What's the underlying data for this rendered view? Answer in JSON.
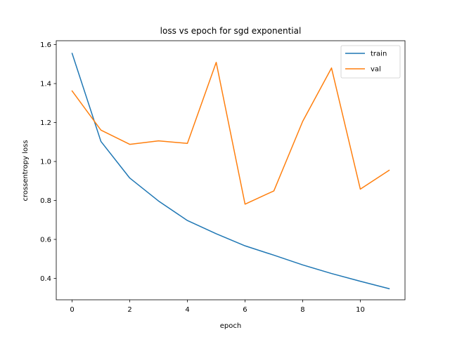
{
  "chart_data": {
    "type": "line",
    "title": "loss vs epoch for sgd exponential",
    "xlabel": "epoch",
    "ylabel": "crossentropy loss",
    "x": [
      0,
      1,
      2,
      3,
      4,
      5,
      6,
      7,
      8,
      9,
      10,
      11
    ],
    "xlim": [
      -0.55,
      11.55
    ],
    "ylim": [
      0.29,
      1.62
    ],
    "xticks": [
      0,
      2,
      4,
      6,
      8,
      10
    ],
    "xtick_labels": [
      "0",
      "2",
      "4",
      "6",
      "8",
      "10"
    ],
    "yticks": [
      0.4,
      0.6,
      0.8,
      1.0,
      1.2,
      1.4,
      1.6
    ],
    "ytick_labels": [
      "0.4",
      "0.6",
      "0.8",
      "1.0",
      "1.2",
      "1.4",
      "1.6"
    ],
    "grid": false,
    "legend_position": "top-right",
    "series": [
      {
        "name": "train",
        "color": "#1f77b4",
        "values": [
          1.555,
          1.103,
          0.915,
          0.797,
          0.697,
          0.629,
          0.567,
          0.519,
          0.469,
          0.425,
          0.385,
          0.347
        ]
      },
      {
        "name": "val",
        "color": "#ff7f0e",
        "values": [
          1.362,
          1.161,
          1.088,
          1.106,
          1.093,
          1.509,
          0.781,
          0.849,
          1.206,
          1.48,
          0.858,
          0.955
        ]
      }
    ]
  }
}
